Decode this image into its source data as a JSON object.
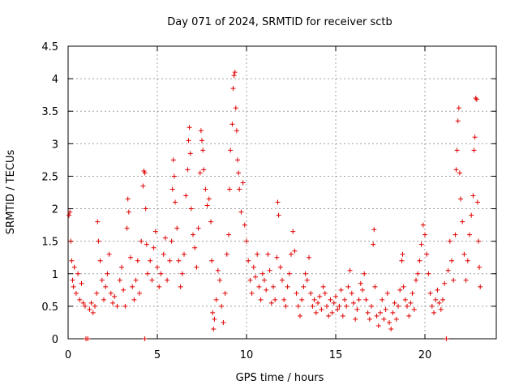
{
  "chart_data": {
    "type": "scatter",
    "title": "Day 071 of 2024, SRMTID for receiver sctb",
    "xlabel": "GPS time / hours",
    "ylabel": "SRMTID / TECUs",
    "xlim": [
      0,
      24
    ],
    "ylim": [
      0,
      4.5
    ],
    "xticks": [
      0,
      5,
      10,
      15,
      20
    ],
    "xtick_labels": [
      "0",
      "5",
      "10",
      "15",
      "20"
    ],
    "yticks": [
      0,
      0.5,
      1,
      1.5,
      2,
      2.5,
      3,
      3.5,
      4,
      4.5
    ],
    "ytick_labels": [
      "0",
      "0.5",
      "1",
      "1.5",
      "2",
      "2.5",
      "3",
      "3.5",
      "4",
      "4.5"
    ],
    "grid": true,
    "marker": "plus",
    "series": [
      {
        "name": "SRMTID",
        "color": "#e00000",
        "points": [
          [
            0.05,
            1.9
          ],
          [
            0.1,
            1.95
          ],
          [
            0.15,
            1.5
          ],
          [
            0.2,
            1.2
          ],
          [
            0.25,
            0.9
          ],
          [
            0.3,
            0.8
          ],
          [
            0.35,
            1.1
          ],
          [
            0.45,
            0.7
          ],
          [
            0.55,
            1.0
          ],
          [
            0.65,
            0.6
          ],
          [
            0.75,
            0.85
          ],
          [
            0.85,
            0.55
          ],
          [
            0.95,
            0.5
          ],
          [
            1.0,
            0.0
          ],
          [
            1.1,
            0.0
          ],
          [
            1.2,
            0.45
          ],
          [
            1.3,
            0.55
          ],
          [
            1.4,
            0.4
          ],
          [
            1.5,
            0.5
          ],
          [
            1.6,
            0.7
          ],
          [
            1.65,
            1.8
          ],
          [
            1.7,
            1.5
          ],
          [
            1.8,
            1.2
          ],
          [
            1.9,
            0.9
          ],
          [
            2.0,
            0.6
          ],
          [
            2.1,
            0.8
          ],
          [
            2.2,
            1.0
          ],
          [
            2.3,
            1.3
          ],
          [
            2.4,
            0.7
          ],
          [
            2.5,
            0.55
          ],
          [
            2.6,
            0.65
          ],
          [
            2.75,
            0.5
          ],
          [
            2.9,
            0.9
          ],
          [
            3.0,
            1.1
          ],
          [
            3.1,
            0.75
          ],
          [
            3.2,
            0.5
          ],
          [
            3.3,
            1.7
          ],
          [
            3.35,
            2.15
          ],
          [
            3.4,
            1.95
          ],
          [
            3.5,
            1.25
          ],
          [
            3.6,
            0.8
          ],
          [
            3.7,
            0.6
          ],
          [
            3.8,
            0.9
          ],
          [
            3.9,
            1.2
          ],
          [
            4.0,
            0.7
          ],
          [
            4.1,
            1.5
          ],
          [
            4.2,
            2.35
          ],
          [
            4.25,
            2.58
          ],
          [
            4.3,
            2.55
          ],
          [
            4.35,
            2.0
          ],
          [
            4.4,
            1.45
          ],
          [
            4.45,
            1.0
          ],
          [
            4.3,
            0.0
          ],
          [
            4.6,
            1.2
          ],
          [
            4.7,
            0.9
          ],
          [
            4.8,
            1.4
          ],
          [
            4.9,
            1.65
          ],
          [
            5.0,
            1.1
          ],
          [
            5.1,
            0.8
          ],
          [
            5.2,
            1.0
          ],
          [
            5.35,
            1.3
          ],
          [
            5.45,
            1.55
          ],
          [
            5.55,
            0.9
          ],
          [
            5.7,
            1.2
          ],
          [
            5.8,
            1.5
          ],
          [
            5.85,
            2.3
          ],
          [
            5.9,
            2.75
          ],
          [
            5.95,
            2.5
          ],
          [
            6.0,
            2.1
          ],
          [
            6.1,
            1.7
          ],
          [
            6.2,
            1.2
          ],
          [
            6.3,
            0.8
          ],
          [
            6.4,
            1.0
          ],
          [
            6.5,
            1.3
          ],
          [
            6.6,
            2.2
          ],
          [
            6.7,
            2.6
          ],
          [
            6.75,
            3.05
          ],
          [
            6.8,
            3.25
          ],
          [
            6.85,
            2.85
          ],
          [
            6.9,
            2.0
          ],
          [
            7.0,
            1.6
          ],
          [
            7.1,
            1.4
          ],
          [
            7.2,
            1.1
          ],
          [
            7.3,
            1.7
          ],
          [
            7.4,
            2.55
          ],
          [
            7.45,
            3.2
          ],
          [
            7.5,
            3.05
          ],
          [
            7.55,
            2.9
          ],
          [
            7.6,
            2.6
          ],
          [
            7.7,
            2.3
          ],
          [
            7.8,
            2.05
          ],
          [
            7.9,
            2.15
          ],
          [
            8.0,
            1.8
          ],
          [
            8.05,
            1.2
          ],
          [
            8.1,
            0.4
          ],
          [
            8.15,
            0.15
          ],
          [
            8.2,
            0.3
          ],
          [
            8.3,
            0.6
          ],
          [
            8.4,
            1.05
          ],
          [
            8.5,
            0.9
          ],
          [
            8.6,
            0.5
          ],
          [
            8.7,
            0.25
          ],
          [
            8.8,
            0.7
          ],
          [
            8.9,
            1.3
          ],
          [
            9.0,
            1.6
          ],
          [
            9.05,
            2.3
          ],
          [
            9.1,
            2.9
          ],
          [
            9.2,
            3.3
          ],
          [
            9.25,
            3.85
          ],
          [
            9.3,
            4.05
          ],
          [
            9.35,
            4.1
          ],
          [
            9.4,
            3.55
          ],
          [
            9.45,
            3.2
          ],
          [
            9.5,
            2.75
          ],
          [
            9.55,
            2.55
          ],
          [
            9.6,
            2.3
          ],
          [
            9.7,
            1.95
          ],
          [
            9.8,
            2.4
          ],
          [
            9.9,
            1.75
          ],
          [
            10.0,
            1.5
          ],
          [
            10.1,
            1.2
          ],
          [
            10.2,
            0.9
          ],
          [
            10.3,
            0.7
          ],
          [
            10.4,
            1.1
          ],
          [
            10.5,
            0.95
          ],
          [
            10.6,
            1.3
          ],
          [
            10.7,
            0.8
          ],
          [
            10.8,
            0.6
          ],
          [
            10.9,
            1.0
          ],
          [
            11.0,
            0.9
          ],
          [
            11.1,
            0.75
          ],
          [
            11.2,
            1.3
          ],
          [
            11.3,
            1.05
          ],
          [
            11.4,
            0.55
          ],
          [
            11.5,
            0.8
          ],
          [
            11.6,
            0.6
          ],
          [
            11.7,
            1.25
          ],
          [
            11.75,
            2.1
          ],
          [
            11.8,
            1.9
          ],
          [
            11.9,
            1.1
          ],
          [
            12.0,
            0.9
          ],
          [
            12.1,
            0.6
          ],
          [
            12.2,
            0.5
          ],
          [
            12.3,
            0.8
          ],
          [
            12.4,
            1.0
          ],
          [
            12.5,
            1.3
          ],
          [
            12.6,
            1.65
          ],
          [
            12.7,
            1.35
          ],
          [
            12.8,
            0.7
          ],
          [
            12.9,
            0.5
          ],
          [
            13.0,
            0.35
          ],
          [
            13.1,
            0.6
          ],
          [
            13.2,
            0.8
          ],
          [
            13.3,
            1.0
          ],
          [
            13.4,
            0.9
          ],
          [
            13.5,
            1.25
          ],
          [
            13.6,
            0.7
          ],
          [
            13.7,
            0.5
          ],
          [
            13.8,
            0.6
          ],
          [
            13.9,
            0.4
          ],
          [
            14.0,
            0.55
          ],
          [
            14.1,
            0.65
          ],
          [
            14.2,
            0.45
          ],
          [
            14.3,
            0.8
          ],
          [
            14.4,
            0.7
          ],
          [
            14.5,
            0.5
          ],
          [
            14.6,
            0.35
          ],
          [
            14.7,
            0.6
          ],
          [
            14.8,
            0.4
          ],
          [
            14.9,
            0.55
          ],
          [
            15.0,
            0.65
          ],
          [
            15.1,
            0.45
          ],
          [
            15.2,
            0.5
          ],
          [
            15.3,
            0.75
          ],
          [
            15.4,
            0.35
          ],
          [
            15.5,
            0.6
          ],
          [
            15.6,
            0.5
          ],
          [
            15.7,
            0.8
          ],
          [
            15.8,
            1.05
          ],
          [
            15.9,
            0.7
          ],
          [
            16.0,
            0.55
          ],
          [
            16.1,
            0.3
          ],
          [
            16.2,
            0.45
          ],
          [
            16.3,
            0.6
          ],
          [
            16.4,
            0.85
          ],
          [
            16.5,
            0.75
          ],
          [
            16.6,
            1.0
          ],
          [
            16.7,
            0.6
          ],
          [
            16.8,
            0.4
          ],
          [
            16.9,
            0.3
          ],
          [
            17.0,
            0.5
          ],
          [
            17.1,
            1.45
          ],
          [
            17.15,
            1.68
          ],
          [
            17.2,
            0.8
          ],
          [
            17.3,
            0.35
          ],
          [
            17.4,
            0.2
          ],
          [
            17.5,
            0.4
          ],
          [
            17.6,
            0.6
          ],
          [
            17.7,
            0.3
          ],
          [
            17.8,
            0.45
          ],
          [
            17.9,
            0.7
          ],
          [
            18.0,
            0.25
          ],
          [
            18.1,
            0.15
          ],
          [
            18.2,
            0.4
          ],
          [
            18.3,
            0.55
          ],
          [
            18.4,
            0.3
          ],
          [
            18.5,
            0.5
          ],
          [
            18.6,
            0.75
          ],
          [
            18.7,
            1.2
          ],
          [
            18.75,
            1.3
          ],
          [
            18.8,
            0.8
          ],
          [
            18.9,
            0.6
          ],
          [
            19.0,
            0.5
          ],
          [
            19.1,
            0.35
          ],
          [
            19.2,
            0.55
          ],
          [
            19.3,
            0.7
          ],
          [
            19.4,
            0.45
          ],
          [
            19.5,
            0.9
          ],
          [
            19.6,
            1.0
          ],
          [
            19.7,
            1.2
          ],
          [
            19.8,
            1.45
          ],
          [
            19.9,
            1.75
          ],
          [
            20.0,
            1.6
          ],
          [
            20.1,
            1.3
          ],
          [
            20.2,
            1.0
          ],
          [
            20.3,
            0.7
          ],
          [
            20.4,
            0.5
          ],
          [
            20.5,
            0.4
          ],
          [
            20.6,
            0.6
          ],
          [
            20.7,
            0.75
          ],
          [
            20.8,
            0.55
          ],
          [
            20.9,
            0.45
          ],
          [
            21.0,
            0.6
          ],
          [
            21.1,
            0.85
          ],
          [
            21.2,
            0.0
          ],
          [
            21.3,
            1.05
          ],
          [
            21.4,
            1.5
          ],
          [
            21.5,
            1.2
          ],
          [
            21.6,
            0.9
          ],
          [
            21.7,
            1.6
          ],
          [
            21.75,
            2.6
          ],
          [
            21.8,
            2.9
          ],
          [
            21.85,
            3.35
          ],
          [
            21.9,
            3.55
          ],
          [
            21.95,
            2.55
          ],
          [
            22.0,
            2.15
          ],
          [
            22.1,
            1.8
          ],
          [
            22.2,
            1.3
          ],
          [
            22.3,
            0.9
          ],
          [
            22.4,
            1.2
          ],
          [
            22.5,
            1.6
          ],
          [
            22.6,
            1.9
          ],
          [
            22.7,
            2.2
          ],
          [
            22.75,
            2.9
          ],
          [
            22.8,
            3.1
          ],
          [
            22.85,
            3.7
          ],
          [
            22.9,
            3.68
          ],
          [
            22.95,
            2.1
          ],
          [
            23.0,
            1.5
          ],
          [
            23.05,
            1.1
          ],
          [
            23.1,
            0.8
          ]
        ]
      }
    ]
  }
}
